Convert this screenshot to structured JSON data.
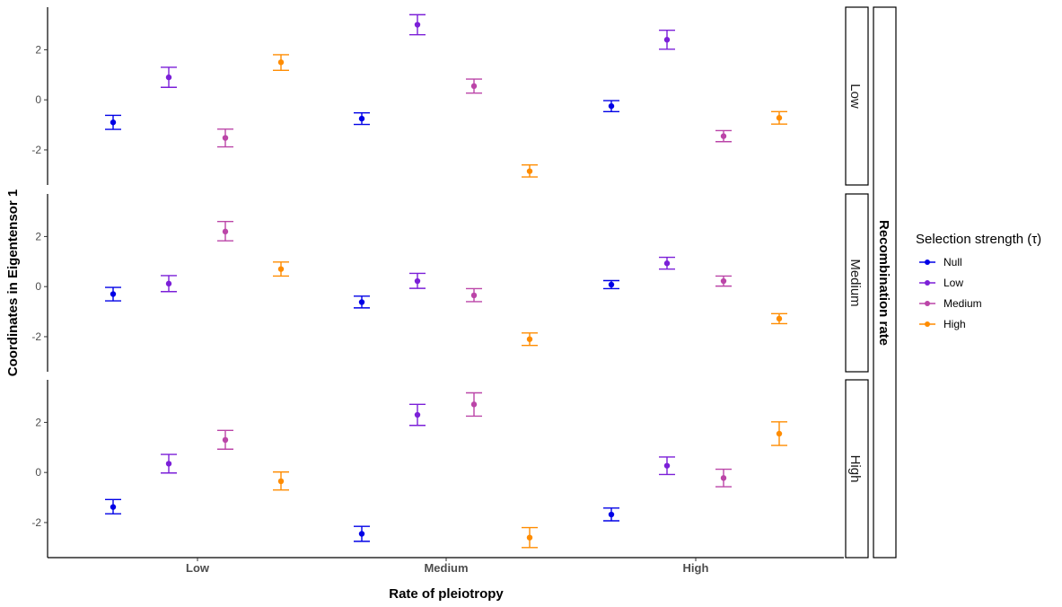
{
  "chart_data": {
    "type": "errorbar",
    "xlabel": "Rate of pleiotropy",
    "ylabel": "Coordinates in Eigentensor 1",
    "categories": [
      "Low",
      "Medium",
      "High"
    ],
    "yticks": [
      -2,
      0,
      2
    ],
    "ylim": [
      -3.4,
      3.7
    ],
    "facet_title": "Recombination rate",
    "facets": [
      "Low",
      "Medium",
      "High"
    ],
    "legend": {
      "title": "Selection strength (τ)",
      "position": "right"
    },
    "series": [
      {
        "name": "Null",
        "color": "#0000e6",
        "panels": [
          {
            "facet": "Low",
            "mean": [
              -0.9,
              -0.75,
              -0.25
            ],
            "lower": [
              -1.18,
              -0.98,
              -0.47
            ],
            "upper": [
              -0.62,
              -0.52,
              -0.03
            ]
          },
          {
            "facet": "Medium",
            "mean": [
              -0.3,
              -0.62,
              0.08
            ],
            "lower": [
              -0.57,
              -0.85,
              -0.08
            ],
            "upper": [
              -0.03,
              -0.38,
              0.24
            ]
          },
          {
            "facet": "High",
            "mean": [
              -1.38,
              -2.45,
              -1.68
            ],
            "lower": [
              -1.65,
              -2.75,
              -1.93
            ],
            "upper": [
              -1.08,
              -2.15,
              -1.42
            ]
          }
        ]
      },
      {
        "name": "Low",
        "color": "#7b1fd8",
        "panels": [
          {
            "facet": "Low",
            "mean": [
              0.9,
              3.0,
              2.4
            ],
            "lower": [
              0.5,
              2.6,
              2.02
            ],
            "upper": [
              1.3,
              3.4,
              2.78
            ]
          },
          {
            "facet": "Medium",
            "mean": [
              0.12,
              0.22,
              0.93
            ],
            "lower": [
              -0.2,
              -0.07,
              0.7
            ],
            "upper": [
              0.44,
              0.53,
              1.17
            ]
          },
          {
            "facet": "High",
            "mean": [
              0.35,
              2.3,
              0.27
            ],
            "lower": [
              -0.02,
              1.88,
              -0.08
            ],
            "upper": [
              0.72,
              2.72,
              0.62
            ]
          }
        ]
      },
      {
        "name": "Medium",
        "color": "#bb45a8",
        "panels": [
          {
            "facet": "Low",
            "mean": [
              -1.52,
              0.55,
              -1.45
            ],
            "lower": [
              -1.88,
              0.27,
              -1.67
            ],
            "upper": [
              -1.17,
              0.83,
              -1.23
            ]
          },
          {
            "facet": "Medium",
            "mean": [
              2.2,
              -0.35,
              0.22
            ],
            "lower": [
              1.83,
              -0.6,
              0.02
            ],
            "upper": [
              2.6,
              -0.08,
              0.42
            ]
          },
          {
            "facet": "High",
            "mean": [
              1.3,
              2.72,
              -0.22
            ],
            "lower": [
              0.93,
              2.25,
              -0.57
            ],
            "upper": [
              1.68,
              3.18,
              0.13
            ]
          }
        ]
      },
      {
        "name": "High",
        "color": "#ff8c00",
        "panels": [
          {
            "facet": "Low",
            "mean": [
              1.5,
              -2.85,
              -0.72
            ],
            "lower": [
              1.18,
              -3.08,
              -0.97
            ],
            "upper": [
              1.8,
              -2.6,
              -0.47
            ]
          },
          {
            "facet": "Medium",
            "mean": [
              0.7,
              -2.1,
              -1.28
            ],
            "lower": [
              0.42,
              -2.35,
              -1.48
            ],
            "upper": [
              0.98,
              -1.85,
              -1.08
            ]
          },
          {
            "facet": "High",
            "mean": [
              -0.35,
              -2.6,
              1.55
            ],
            "lower": [
              -0.7,
              -3.0,
              1.08
            ],
            "upper": [
              0.02,
              -2.2,
              2.02
            ]
          }
        ]
      }
    ]
  }
}
